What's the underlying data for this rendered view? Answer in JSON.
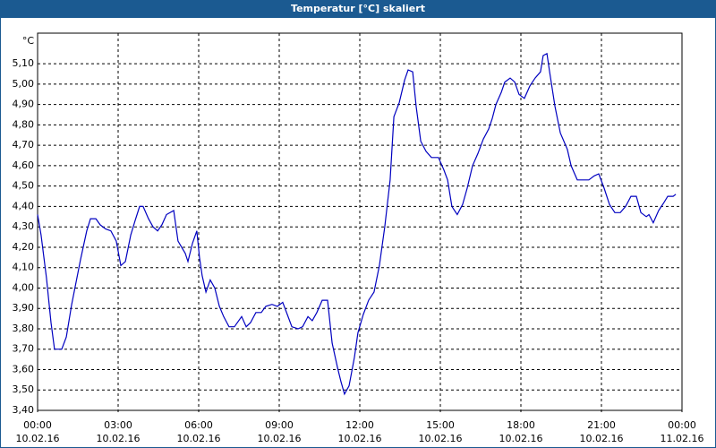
{
  "chart_data": {
    "type": "line",
    "title": "Temperatur [°C] skaliert",
    "y_unit": "°C",
    "color": "#0000c0",
    "grid": true,
    "x": [
      0,
      0.13,
      0.33,
      0.5,
      0.63,
      0.9,
      1.07,
      1.27,
      1.6,
      1.83,
      1.97,
      2.17,
      2.33,
      2.53,
      2.73,
      2.93,
      3.1,
      3.27,
      3.47,
      3.63,
      3.8,
      3.93,
      4.13,
      4.3,
      4.47,
      4.63,
      4.8,
      5.07,
      5.23,
      5.5,
      5.6,
      5.77,
      5.93,
      6.03,
      6.13,
      6.27,
      6.43,
      6.6,
      6.77,
      6.93,
      7.13,
      7.33,
      7.6,
      7.77,
      7.93,
      8.13,
      8.33,
      8.5,
      8.73,
      8.93,
      9.13,
      9.3,
      9.47,
      9.7,
      9.87,
      10.07,
      10.23,
      10.4,
      10.6,
      10.8,
      10.97,
      11.17,
      11.3,
      11.43,
      11.6,
      11.8,
      11.93,
      12.13,
      12.33,
      12.53,
      12.73,
      12.93,
      13.13,
      13.27,
      13.47,
      13.67,
      13.8,
      13.97,
      14.1,
      14.27,
      14.47,
      14.67,
      14.93,
      15.13,
      15.27,
      15.43,
      15.63,
      15.83,
      16,
      16.2,
      16.4,
      16.6,
      16.8,
      16.93,
      17.07,
      17.27,
      17.4,
      17.6,
      17.77,
      17.93,
      18.13,
      18.33,
      18.53,
      18.73,
      18.83,
      18.97,
      19.07,
      19.27,
      19.47,
      19.73,
      19.87,
      20.1,
      20.33,
      20.53,
      20.73,
      20.9,
      21.1,
      21.3,
      21.5,
      21.7,
      21.9,
      22.1,
      22.3,
      22.47,
      22.67,
      22.77,
      22.93,
      23.13,
      23.33,
      23.47,
      23.67,
      23.77
    ],
    "values": [
      4.36,
      4.26,
      4.05,
      3.83,
      3.7,
      3.7,
      3.76,
      3.92,
      4.14,
      4.28,
      4.34,
      4.34,
      4.31,
      4.29,
      4.28,
      4.23,
      4.11,
      4.13,
      4.26,
      4.33,
      4.4,
      4.4,
      4.34,
      4.3,
      4.28,
      4.31,
      4.36,
      4.38,
      4.23,
      4.17,
      4.13,
      4.22,
      4.28,
      4.15,
      4.06,
      3.98,
      4.04,
      4,
      3.91,
      3.86,
      3.81,
      3.81,
      3.86,
      3.81,
      3.83,
      3.88,
      3.88,
      3.91,
      3.92,
      3.91,
      3.93,
      3.87,
      3.81,
      3.8,
      3.81,
      3.86,
      3.84,
      3.88,
      3.94,
      3.94,
      3.73,
      3.61,
      3.54,
      3.48,
      3.52,
      3.66,
      3.78,
      3.87,
      3.94,
      3.98,
      4.11,
      4.3,
      4.53,
      4.84,
      4.91,
      5.02,
      5.07,
      5.06,
      4.89,
      4.72,
      4.67,
      4.64,
      4.64,
      4.58,
      4.53,
      4.4,
      4.36,
      4.41,
      4.49,
      4.6,
      4.66,
      4.73,
      4.78,
      4.83,
      4.9,
      4.96,
      5.01,
      5.03,
      5.01,
      4.95,
      4.93,
      4.99,
      5.03,
      5.06,
      5.14,
      5.15,
      5.06,
      4.89,
      4.76,
      4.68,
      4.6,
      4.53,
      4.53,
      4.53,
      4.55,
      4.56,
      4.49,
      4.41,
      4.37,
      4.37,
      4.4,
      4.45,
      4.45,
      4.37,
      4.35,
      4.36,
      4.32,
      4.38,
      4.42,
      4.45,
      4.45,
      4.46
    ],
    "xlim": [
      0,
      24
    ],
    "xticks": [
      {
        "value": 0,
        "label": "00:00",
        "date": "10.02.16"
      },
      {
        "value": 3,
        "label": "03:00",
        "date": "10.02.16"
      },
      {
        "value": 6,
        "label": "06:00",
        "date": "10.02.16"
      },
      {
        "value": 9,
        "label": "09:00",
        "date": "10.02.16"
      },
      {
        "value": 12,
        "label": "12:00",
        "date": "10.02.16"
      },
      {
        "value": 15,
        "label": "15:00",
        "date": "10.02.16"
      },
      {
        "value": 18,
        "label": "18:00",
        "date": "10.02.16"
      },
      {
        "value": 21,
        "label": "21:00",
        "date": "10.02.16"
      },
      {
        "value": 24,
        "label": "00:00",
        "date": "11.02.16"
      }
    ],
    "ylim": [
      3.4,
      5.25
    ],
    "yticks": [
      {
        "value": 3.4,
        "label": "3,40"
      },
      {
        "value": 3.5,
        "label": "3,50"
      },
      {
        "value": 3.6,
        "label": "3,60"
      },
      {
        "value": 3.7,
        "label": "3,70"
      },
      {
        "value": 3.8,
        "label": "3,80"
      },
      {
        "value": 3.9,
        "label": "3,90"
      },
      {
        "value": 4.0,
        "label": "4,00"
      },
      {
        "value": 4.1,
        "label": "4,10"
      },
      {
        "value": 4.2,
        "label": "4,20"
      },
      {
        "value": 4.3,
        "label": "4,30"
      },
      {
        "value": 4.4,
        "label": "4,40"
      },
      {
        "value": 4.5,
        "label": "4,50"
      },
      {
        "value": 4.6,
        "label": "4,60"
      },
      {
        "value": 4.7,
        "label": "4,70"
      },
      {
        "value": 4.8,
        "label": "4,80"
      },
      {
        "value": 4.9,
        "label": "4,90"
      },
      {
        "value": 5.0,
        "label": "5,00"
      },
      {
        "value": 5.1,
        "label": "5,10"
      }
    ]
  }
}
